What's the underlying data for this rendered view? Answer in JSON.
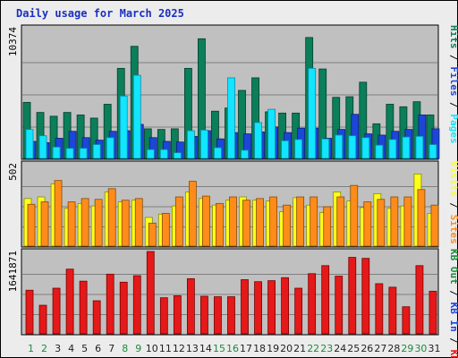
{
  "title": "Daily usage for March 2025",
  "colors": {
    "pages": "#11e5ff",
    "pages_dark": "#0b8fa8",
    "files": "#1b46d8",
    "files_dark": "#0a2276",
    "hits": "#0b7e5a",
    "hits_dark": "#033d2a",
    "visits": "#ffff1c",
    "visits_dark": "#8a8a00",
    "sites": "#ff8c1a",
    "sites_dark": "#8a4a00",
    "kb": "#e51919",
    "kb_dark": "#7a0000",
    "panel_bg": "#c0c0c0",
    "grid": "#7f7f7f",
    "weekend_day": "#1e8a3c",
    "weekday_day": "#222222"
  },
  "legend": {
    "top": [
      "Hits",
      "Files",
      "Pages"
    ],
    "middle": [
      "Visits",
      "Sites"
    ],
    "bottom": [
      "KB Out",
      "KB In",
      "KB F"
    ]
  },
  "chart_data": {
    "type": "bar",
    "title": "Daily usage for March 2025",
    "categories": [
      "1",
      "2",
      "3",
      "4",
      "5",
      "6",
      "7",
      "8",
      "9",
      "10",
      "11",
      "12",
      "13",
      "14",
      "15",
      "16",
      "17",
      "18",
      "19",
      "20",
      "21",
      "22",
      "23",
      "24",
      "25",
      "26",
      "27",
      "28",
      "29",
      "30",
      "31"
    ],
    "weekend_days": [
      "1",
      "2",
      "8",
      "9",
      "15",
      "16",
      "22",
      "23",
      "29",
      "30"
    ],
    "panels": [
      {
        "id": "requests",
        "max_label": "10374",
        "ylim": [
          0,
          10374
        ],
        "series": [
          {
            "name": "Hits",
            "values": [
              4450,
              3650,
              3350,
              3650,
              3450,
              3200,
              4300,
              7150,
              8900,
              2350,
              2300,
              2350,
              7150,
              9500,
              3750,
              4000,
              5400,
              6400,
              3700,
              3600,
              3600,
              9600,
              7100,
              4850,
              4900,
              6050,
              2750,
              4300,
              4100,
              4500,
              3450
            ]
          },
          {
            "name": "Files",
            "values": [
              1350,
              1250,
              1600,
              2150,
              1650,
              1450,
              2150,
              2200,
              2700,
              1650,
              1350,
              1300,
              1750,
              2200,
              1550,
              2050,
              1950,
              2100,
              2500,
              2050,
              2400,
              2400,
              1600,
              2300,
              3500,
              1950,
              1850,
              2150,
              2300,
              3450,
              2350
            ]
          },
          {
            "name": "Pages",
            "values": [
              2300,
              1800,
              900,
              800,
              800,
              1100,
              1650,
              4950,
              6600,
              700,
              700,
              450,
              2200,
              2250,
              850,
              6400,
              650,
              2850,
              3900,
              1400,
              1500,
              7150,
              1550,
              1850,
              1800,
              1650,
              1050,
              1500,
              1700,
              1750,
              1100
            ]
          }
        ]
      },
      {
        "id": "visits",
        "max_label": "502",
        "ylim": [
          0,
          502
        ],
        "series": [
          {
            "name": "Visits",
            "values": [
              290,
              300,
              380,
              230,
              260,
              245,
              330,
              270,
              280,
              175,
              195,
              245,
              330,
              290,
              250,
              280,
              300,
              280,
              275,
              210,
              295,
              250,
              205,
              330,
              275,
              235,
              320,
              230,
              245,
              440,
              200
            ]
          },
          {
            "name": "Sites",
            "values": [
              255,
              270,
              400,
              270,
              290,
              285,
              350,
              280,
              290,
              140,
              200,
              300,
              395,
              305,
              260,
              300,
              280,
              290,
              300,
              250,
              300,
              300,
              240,
              300,
              370,
              270,
              285,
              300,
              300,
              345,
              250
            ]
          }
        ]
      },
      {
        "id": "kbytes",
        "max_label": "1641871",
        "ylim": [
          0,
          1641871
        ],
        "series": [
          {
            "name": "KB F",
            "values": [
              870000,
              570000,
              910000,
              1290000,
              1050000,
              660000,
              1190000,
              1030000,
              1160000,
              1641871,
              720000,
              760000,
              1100000,
              750000,
              740000,
              740000,
              1080000,
              1040000,
              1060000,
              1120000,
              910000,
              1200000,
              1360000,
              1150000,
              1525000,
              1505000,
              1000000,
              930000,
              540000,
              1360000,
              850000
            ]
          }
        ]
      }
    ]
  }
}
